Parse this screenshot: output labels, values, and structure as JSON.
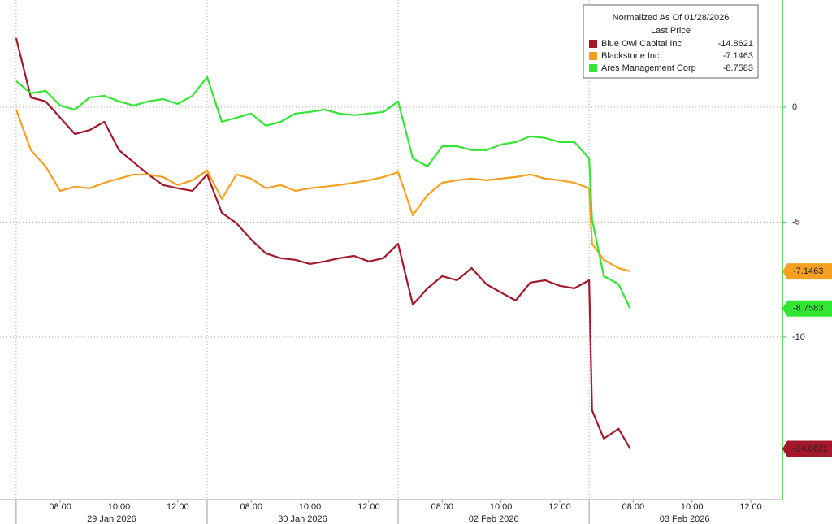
{
  "chart_data": {
    "type": "line",
    "legend_title": "Normalized As Of 01/28/2026",
    "legend_subtitle": "Last Price",
    "legend_position": "upper right",
    "grid": true,
    "xlim": [
      -0.55,
      26.05
    ],
    "ylim": [
      -17.07,
      4.66
    ],
    "yticks": [
      0,
      -5,
      -10
    ],
    "xticks": [
      {
        "value": 1.5,
        "label": "08:00"
      },
      {
        "value": 3.5,
        "label": "10:00"
      },
      {
        "value": 5.5,
        "label": "12:00"
      },
      {
        "value": 8,
        "label": "08:00"
      },
      {
        "value": 10,
        "label": "10:00"
      },
      {
        "value": 12,
        "label": "12:00"
      },
      {
        "value": 14.5,
        "label": "08:00"
      },
      {
        "value": 16.5,
        "label": "10:00"
      },
      {
        "value": 18.5,
        "label": "12:00"
      },
      {
        "value": 21,
        "label": "08:00"
      },
      {
        "value": 23,
        "label": "10:00"
      },
      {
        "value": 25,
        "label": "12:00"
      }
    ],
    "date_ticks": [
      {
        "value": 3.25,
        "label": "29 Jan 2026"
      },
      {
        "value": 9.75,
        "label": "30 Jan 2026"
      },
      {
        "value": 16.25,
        "label": "02 Feb 2026"
      },
      {
        "value": 22.75,
        "label": "03 Feb 2026"
      }
    ],
    "session_starts": [
      0,
      6.5,
      13,
      19.5
    ],
    "x": [
      0,
      0.5,
      1,
      1.5,
      2,
      2.5,
      3,
      3.5,
      4,
      4.5,
      5,
      5.5,
      6,
      6.5,
      7,
      7.5,
      8,
      8.5,
      9,
      9.5,
      10,
      10.5,
      11,
      11.5,
      12,
      12.5,
      13,
      13.5,
      14,
      14.5,
      15,
      15.5,
      16,
      16.5,
      17,
      17.5,
      18,
      18.5,
      19,
      19.5,
      19.6,
      20,
      20.5,
      20.9
    ],
    "series": [
      {
        "name": "Blue Owl Capital Inc",
        "color": "#a3182b",
        "text_color": "#ffffff",
        "last_value": -14.8621,
        "values": [
          3.0,
          0.42,
          0.25,
          -0.46,
          -1.17,
          -1.0,
          -0.64,
          -1.87,
          -2.4,
          -2.93,
          -3.39,
          -3.53,
          -3.64,
          -2.93,
          -4.59,
          -5.05,
          -5.76,
          -6.36,
          -6.57,
          -6.64,
          -6.82,
          -6.71,
          -6.57,
          -6.47,
          -6.71,
          -6.57,
          -5.94,
          -8.59,
          -7.88,
          -7.35,
          -7.53,
          -7.0,
          -7.7,
          -8.06,
          -8.41,
          -7.63,
          -7.53,
          -7.77,
          -7.88,
          -7.53,
          -13.18,
          -14.42,
          -13.99,
          -14.8621
        ]
      },
      {
        "name": "Blackstone Inc",
        "color": "#f5a020",
        "text_color": "#111111",
        "last_value": -7.1463,
        "values": [
          -0.1,
          -1.87,
          -2.58,
          -3.64,
          -3.46,
          -3.53,
          -3.29,
          -3.11,
          -2.93,
          -2.93,
          -3.04,
          -3.39,
          -3.18,
          -2.76,
          -3.99,
          -2.93,
          -3.11,
          -3.53,
          -3.39,
          -3.64,
          -3.53,
          -3.46,
          -3.39,
          -3.29,
          -3.18,
          -3.04,
          -2.83,
          -4.7,
          -3.82,
          -3.29,
          -3.18,
          -3.11,
          -3.18,
          -3.11,
          -3.04,
          -2.93,
          -3.11,
          -3.18,
          -3.29,
          -3.53,
          -5.94,
          -6.64,
          -7.0,
          -7.1463
        ]
      },
      {
        "name": "Ares Management Corp",
        "color": "#33e633",
        "text_color": "#111111",
        "last_value": -8.7583,
        "values": [
          1.13,
          0.6,
          0.71,
          0.07,
          -0.11,
          0.42,
          0.49,
          0.25,
          0.07,
          0.25,
          0.35,
          0.14,
          0.49,
          1.31,
          -0.64,
          -0.46,
          -0.28,
          -0.81,
          -0.64,
          -0.28,
          -0.21,
          -0.11,
          -0.28,
          -0.35,
          -0.28,
          -0.21,
          0.25,
          -2.23,
          -2.58,
          -1.7,
          -1.7,
          -1.87,
          -1.87,
          -1.63,
          -1.52,
          -1.27,
          -1.34,
          -1.52,
          -1.52,
          -2.23,
          -4.88,
          -7.35,
          -7.7,
          -8.7583
        ]
      }
    ]
  }
}
